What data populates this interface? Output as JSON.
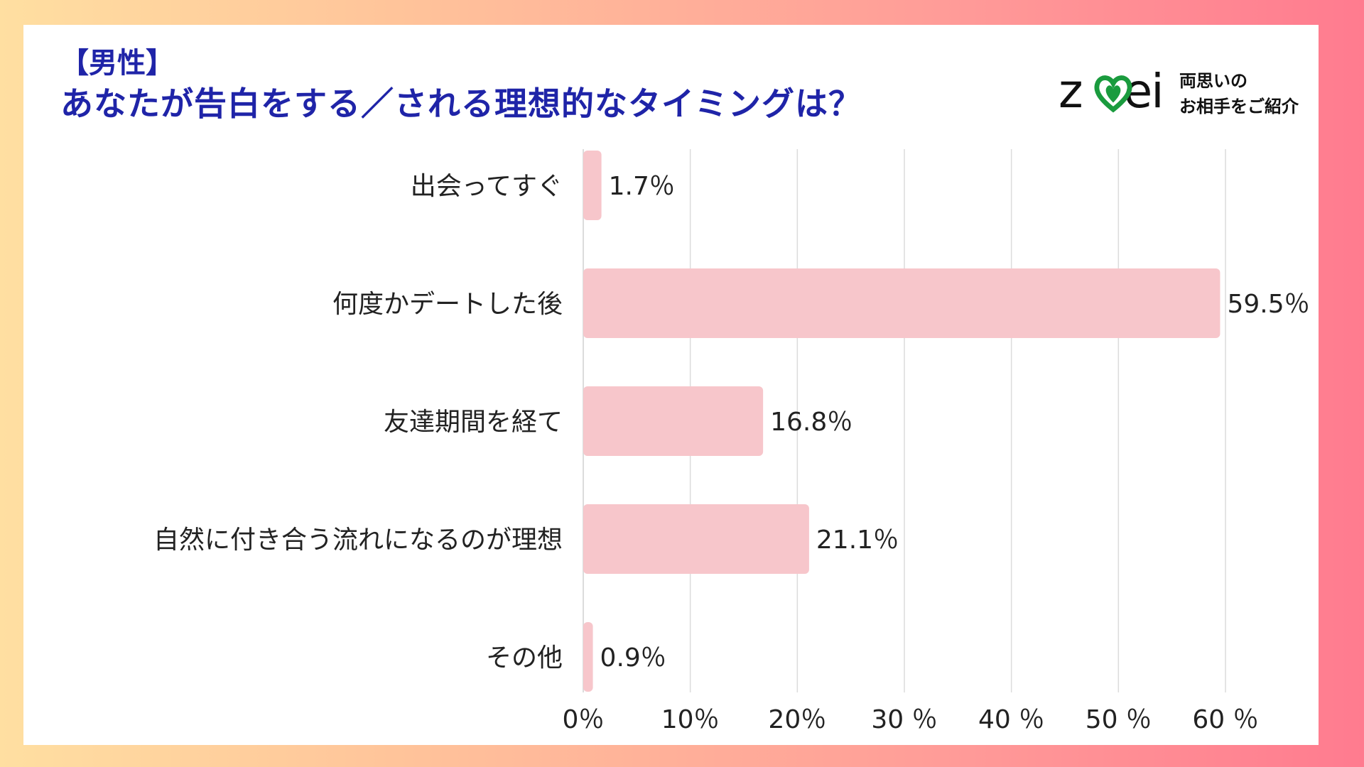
{
  "header": {
    "tag": "【男性】",
    "title": "あなたが告白をする／される理想的なタイミングは？"
  },
  "logo": {
    "wordmark": "zwei",
    "tagline_line1": "両思いの",
    "tagline_line2": "お相手をご紹介",
    "heart_color": "#1a9b3e"
  },
  "chart_data": {
    "type": "bar",
    "orientation": "horizontal",
    "categories": [
      "出会ってすぐ",
      "何度かデートした後",
      "友達期間を経て",
      "自然に付き合う流れになるのが理想",
      "その他"
    ],
    "values": [
      1.7,
      59.5,
      16.8,
      21.1,
      0.9
    ],
    "value_labels": [
      "1.7％",
      "59.5％",
      "16.8％",
      "21.1％",
      "0.9％"
    ],
    "xlim": [
      0,
      60
    ],
    "x_ticks": [
      0,
      10,
      20,
      30,
      40,
      50,
      60
    ],
    "x_tick_labels": [
      "0％",
      "10％",
      "20％",
      "30 ％",
      "40 ％",
      "50 ％",
      "60 ％"
    ],
    "grid": true,
    "bar_color": "#f7c6cb",
    "grid_color": "#dcdcdc"
  }
}
